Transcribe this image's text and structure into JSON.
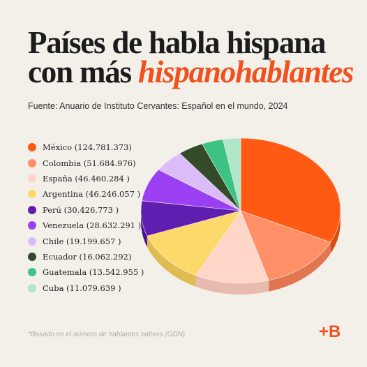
{
  "title": {
    "line1": "Países de habla hispana",
    "line2_plain": "con más ",
    "line2_accent": "hispanohablantes"
  },
  "source": "Fuente: Anuario de Instituto Cervantes: Español en el mundo, 2024",
  "footnote": "*Basado en el número de hablantes nativos (GDN)",
  "brand": "+B",
  "chart_data": {
    "type": "pie",
    "title": "Países de habla hispana con más hispanohablantes",
    "legend_position": "left",
    "categories": [
      "México",
      "Colombia",
      "España",
      "Argentina",
      "Perú",
      "Venezuela",
      "Chile",
      "Ecuador",
      "Guatemala",
      "Cuba"
    ],
    "values": [
      124781373,
      51684976,
      46460284,
      46246057,
      30426773,
      28632291,
      19199657,
      16062292,
      13542955,
      11079639
    ],
    "legend_labels": [
      "México (124.781.373)",
      "Colombia (51.684.976)",
      "España (46.460.284 )",
      "Argentina (46.246.057 )",
      "Perú (30.426.773 )",
      "Venezuela (28.632.291 )",
      "Chile (19.199.657 )",
      "Ecuador (16.062.292)",
      "Guatemala (13.542.955 )",
      "Cuba (11.079.639 )"
    ],
    "colors": [
      "#ff5a14",
      "#ff8f66",
      "#ffd6c8",
      "#fdd86a",
      "#5f1eaf",
      "#9a40f2",
      "#dbbcf8",
      "#344b2a",
      "#3fc384",
      "#b1e6c9"
    ],
    "side_colors": [
      "#d94a0c",
      "#e27650",
      "#e7bcae",
      "#dfbc52",
      "#4a1590",
      "#7f2ed0",
      "#c09fdd",
      "#243a1d",
      "#2fa56c",
      "#93c9ad"
    ]
  }
}
